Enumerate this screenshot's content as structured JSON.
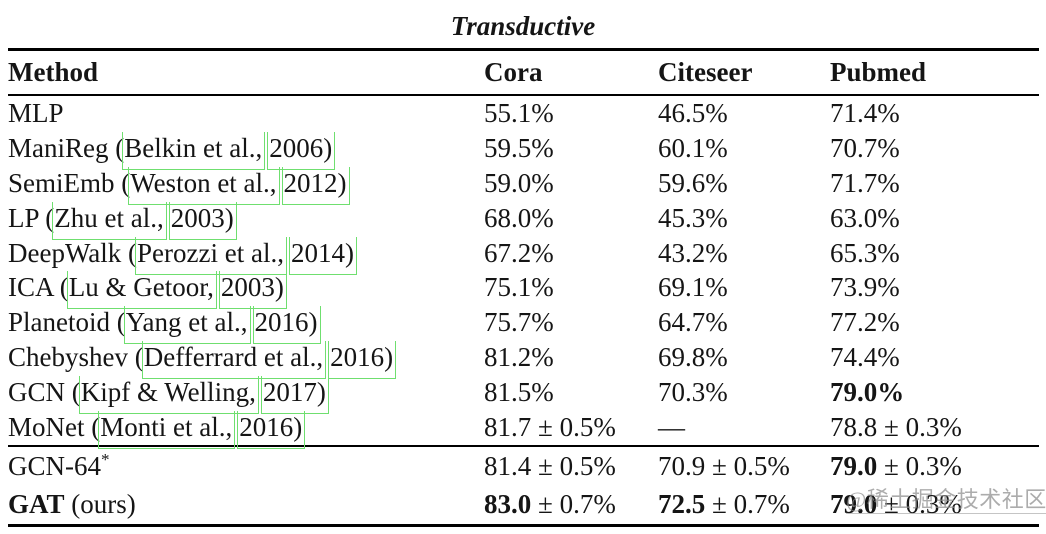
{
  "table": {
    "title": "Transductive",
    "columns": [
      "Method",
      "Cora",
      "Citeseer",
      "Pubmed"
    ],
    "rows": [
      {
        "method": {
          "bold": "",
          "pre": "MLP",
          "author": "",
          "year": "",
          "sup": ""
        },
        "cora": {
          "bold": "",
          "rest": "55.1%"
        },
        "citeseer": {
          "bold": "",
          "rest": "46.5%"
        },
        "pubmed": {
          "bold": "",
          "rest": "71.4%"
        }
      },
      {
        "method": {
          "bold": "",
          "pre": "ManiReg (",
          "author": "Belkin et al.,",
          "year": "2006)",
          "sup": ""
        },
        "cora": {
          "bold": "",
          "rest": "59.5%"
        },
        "citeseer": {
          "bold": "",
          "rest": "60.1%"
        },
        "pubmed": {
          "bold": "",
          "rest": "70.7%"
        }
      },
      {
        "method": {
          "bold": "",
          "pre": "SemiEmb (",
          "author": "Weston et al.,",
          "year": "2012)",
          "sup": ""
        },
        "cora": {
          "bold": "",
          "rest": "59.0%"
        },
        "citeseer": {
          "bold": "",
          "rest": "59.6%"
        },
        "pubmed": {
          "bold": "",
          "rest": "71.7%"
        }
      },
      {
        "method": {
          "bold": "",
          "pre": "LP (",
          "author": "Zhu et al.,",
          "year": "2003)",
          "sup": ""
        },
        "cora": {
          "bold": "",
          "rest": "68.0%"
        },
        "citeseer": {
          "bold": "",
          "rest": "45.3%"
        },
        "pubmed": {
          "bold": "",
          "rest": "63.0%"
        }
      },
      {
        "method": {
          "bold": "",
          "pre": "DeepWalk (",
          "author": "Perozzi et al.,",
          "year": "2014)",
          "sup": ""
        },
        "cora": {
          "bold": "",
          "rest": "67.2%"
        },
        "citeseer": {
          "bold": "",
          "rest": "43.2%"
        },
        "pubmed": {
          "bold": "",
          "rest": "65.3%"
        }
      },
      {
        "method": {
          "bold": "",
          "pre": "ICA (",
          "author": "Lu & Getoor,",
          "year": "2003)",
          "sup": ""
        },
        "cora": {
          "bold": "",
          "rest": "75.1%"
        },
        "citeseer": {
          "bold": "",
          "rest": "69.1%"
        },
        "pubmed": {
          "bold": "",
          "rest": "73.9%"
        }
      },
      {
        "method": {
          "bold": "",
          "pre": "Planetoid (",
          "author": "Yang et al.,",
          "year": "2016)",
          "sup": ""
        },
        "cora": {
          "bold": "",
          "rest": "75.7%"
        },
        "citeseer": {
          "bold": "",
          "rest": "64.7%"
        },
        "pubmed": {
          "bold": "",
          "rest": "77.2%"
        }
      },
      {
        "method": {
          "bold": "",
          "pre": "Chebyshev (",
          "author": "Defferrard et al.,",
          "year": "2016)",
          "sup": ""
        },
        "cora": {
          "bold": "",
          "rest": "81.2%"
        },
        "citeseer": {
          "bold": "",
          "rest": "69.8%"
        },
        "pubmed": {
          "bold": "",
          "rest": "74.4%"
        }
      },
      {
        "method": {
          "bold": "",
          "pre": "GCN (",
          "author": "Kipf & Welling,",
          "year": "2017)",
          "sup": ""
        },
        "cora": {
          "bold": "",
          "rest": "81.5%"
        },
        "citeseer": {
          "bold": "",
          "rest": "70.3%"
        },
        "pubmed": {
          "bold": "79.0%",
          "rest": ""
        }
      },
      {
        "method": {
          "bold": "",
          "pre": "MoNet (",
          "author": "Monti et al.,",
          "year": "2016)",
          "sup": ""
        },
        "cora": {
          "bold": "",
          "rest": "81.7 ± 0.5%"
        },
        "citeseer": {
          "bold": "",
          "rest": "—"
        },
        "pubmed": {
          "bold": "",
          "rest": "78.8 ± 0.3%"
        }
      }
    ],
    "rows_ours": [
      {
        "method": {
          "bold": "",
          "pre": "GCN-64",
          "author": "",
          "year": "",
          "sup": "*"
        },
        "cora": {
          "bold": "",
          "rest": "81.4 ± 0.5%"
        },
        "citeseer": {
          "bold": "",
          "rest": "70.9 ± 0.5%"
        },
        "pubmed": {
          "bold": "79.0",
          "rest": " ± 0.3%"
        }
      },
      {
        "method": {
          "bold": "GAT",
          "pre": " (ours)",
          "author": "",
          "year": "",
          "sup": ""
        },
        "cora": {
          "bold": "83.0",
          "rest": " ± 0.7%"
        },
        "citeseer": {
          "bold": "72.5",
          "rest": " ± 0.7%"
        },
        "pubmed": {
          "bold": "79.0",
          "rest": " ± 0.3%"
        }
      }
    ]
  },
  "watermark": {
    "text": "@稀土掘金技术社区"
  },
  "colors": {
    "link_box": "#6fdf6f",
    "text": "#151515",
    "rule": "#000000",
    "watermark": "#8c8c8c"
  }
}
